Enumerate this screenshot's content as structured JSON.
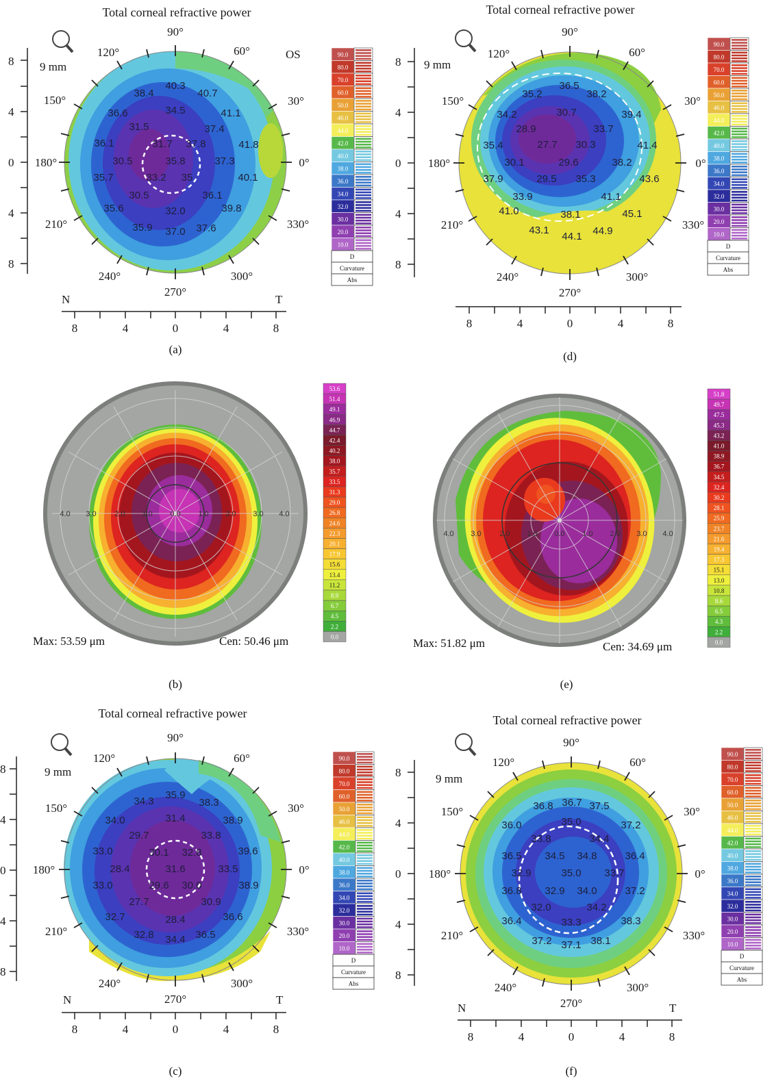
{
  "panels": [
    {
      "id": "a",
      "kind": "curvature",
      "title": "Total corneal refractive power",
      "eye": "OS",
      "caption": "(a)",
      "colors": [
        "#6f2a9a",
        "#5a33b0",
        "#3b3fc0",
        "#2d63d0",
        "#3f9fe0",
        "#63c8de",
        "#6fcf80",
        "#8ccf40",
        "#b8d83a"
      ],
      "center_label": "35.8",
      "values": [
        "40.3",
        "38.4",
        "40.7",
        "36.6",
        "34.5",
        "41.1",
        "31.5",
        "37.4",
        "36.1",
        "31.7",
        "37.8",
        "41.8",
        "30.5",
        "35.8",
        "37.3",
        "35.7",
        "33.2",
        "35",
        "40.1",
        "30.5",
        "36.1",
        "35.6",
        "32.0",
        "39.8",
        "35.9",
        "37.0",
        "37.6"
      ]
    },
    {
      "id": "d",
      "kind": "curvature",
      "title": "Total corneal refractive power",
      "eye": "",
      "caption": "(d)",
      "values": [
        "36.5",
        "35.2",
        "38.2",
        "34.2",
        "30.7",
        "39.4",
        "28.9",
        "33.7",
        "35.4",
        "27.7",
        "30.3",
        "41.4",
        "30.1",
        "29.6",
        "38.2",
        "37.9",
        "29.5",
        "35.3",
        "43.6",
        "33.9",
        "41.1",
        "41.0",
        "38.1",
        "45.1",
        "43.1",
        "44.1",
        "44.9"
      ]
    },
    {
      "id": "c",
      "kind": "curvature",
      "title": "Total corneal refractive power",
      "eye": "",
      "caption": "(c)",
      "values": [
        "35.9",
        "34.3",
        "38.3",
        "34.0",
        "31.4",
        "38.9",
        "29.7",
        "33.8",
        "33.0",
        "30.1",
        "32.8",
        "39.6",
        "28.4",
        "31.6",
        "33.5",
        "33.0",
        "29.6",
        "30.0",
        "38.9",
        "27.7",
        "30.9",
        "32.7",
        "28.4",
        "36.6",
        "32.8",
        "34.4",
        "36.5"
      ]
    },
    {
      "id": "f",
      "kind": "curvature",
      "title": "Total corneal refractive power",
      "eye": "",
      "caption": "(f)",
      "values": [
        "36.8",
        "36.7",
        "37.5",
        "36.0",
        "35.0",
        "37.2",
        "33.8",
        "34.4",
        "36.5",
        "34.5",
        "34.8",
        "36.4",
        "32.9",
        "35.0",
        "33.7",
        "36.8",
        "32.9",
        "34.0",
        "37.2",
        "32.0",
        "34.2",
        "36.4",
        "33.3",
        "38.3",
        "37.2",
        "37.1",
        "38.1"
      ]
    },
    {
      "id": "b",
      "kind": "elevation",
      "caption": "(b)",
      "max_text": "Max: 53.59 μm",
      "cen_text": "Cen: 50.46 μm",
      "scale": [
        "53.6",
        "51.4",
        "49.1",
        "46.9",
        "44.7",
        "42.4",
        "40.2",
        "38.0",
        "35.7",
        "33.5",
        "31.3",
        "29.0",
        "26.8",
        "24.6",
        "22.3",
        "20.1",
        "17.9",
        "15.6",
        "13.4",
        "11.2",
        "8.9",
        "6.7",
        "4.5",
        "2.2",
        "0.0"
      ]
    },
    {
      "id": "e",
      "kind": "elevation",
      "caption": "(e)",
      "max_text": "Max: 51.82 μm",
      "cen_text": "Cen: 34.69 μm",
      "scale": [
        "51.8",
        "49.7",
        "47.5",
        "45.3",
        "43.2",
        "41.0",
        "38.9",
        "36.7",
        "34.5",
        "32.4",
        "30.2",
        "28.1",
        "25.9",
        "23.7",
        "21.6",
        "19.4",
        "17.3",
        "15.1",
        "13.0",
        "10.8",
        "8.6",
        "6.5",
        "4.3",
        "2.2",
        "0.0"
      ]
    }
  ],
  "curvature_common": {
    "size_label": "9 mm",
    "angle_labels": [
      "90°",
      "60°",
      "30°",
      "0°",
      "330°",
      "300°",
      "270°",
      "240°",
      "210°",
      "180°",
      "150°",
      "120°"
    ],
    "axis_ticks": [
      "8",
      "4",
      "0",
      "4",
      "8"
    ],
    "nasal": "N",
    "temporal": "T",
    "scale_values": [
      "90.0",
      "80.0",
      "70.0",
      "60.0",
      "50.0",
      "46.0",
      "44.0",
      "42.0",
      "40.0",
      "38.0",
      "36.0",
      "34.0",
      "32.0",
      "30.0",
      "20.0",
      "10.0"
    ],
    "scale_colors": [
      "#c0504d",
      "#c0392b",
      "#d9412a",
      "#e0602a",
      "#e9a135",
      "#e7c043",
      "#f4ee5a",
      "#57b84a",
      "#74c9e0",
      "#4fa8e0",
      "#3c78c8",
      "#3347b4",
      "#2c2d9c",
      "#6a2fa0",
      "#8f3fb0",
      "#b066c8"
    ],
    "scale_footer": [
      "D",
      "Curvature",
      "Abs"
    ]
  },
  "elevation_common": {
    "ring_labels": [
      "4.0",
      "3.0",
      "2.0",
      "1.0",
      "0.0",
      "1.0",
      "2.0",
      "3.0",
      "4.0"
    ],
    "scale_colors": [
      "#d63fc8",
      "#c633b4",
      "#9a2c9c",
      "#8a2a86",
      "#7a2253",
      "#7a1a2a",
      "#8e1822",
      "#a4161e",
      "#c41d1d",
      "#dd2420",
      "#ea3a1e",
      "#ef5320",
      "#f06a20",
      "#f08325",
      "#f59a2c",
      "#f7b02f",
      "#f7c631",
      "#f4dd37",
      "#eef03d",
      "#c9e53a",
      "#a8d93a",
      "#85cc3a",
      "#5fbd3b",
      "#3fae3a",
      "#a3a6a3"
    ]
  }
}
